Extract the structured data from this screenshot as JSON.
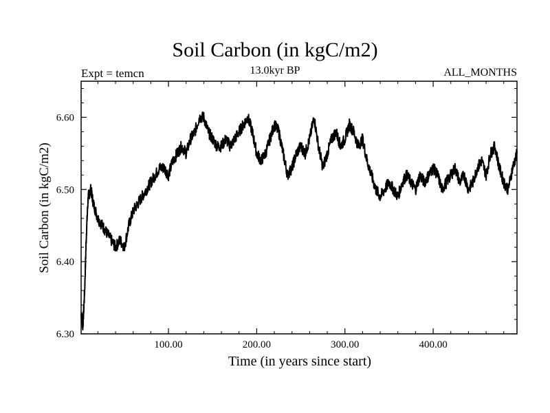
{
  "chart_data": {
    "type": "line",
    "title": "Soil Carbon (in kgC/m2)",
    "subtitle": "13.0kyr BP",
    "left_label": "Expt = temcn",
    "right_label": "ALL_MONTHS",
    "xlabel": "Time (in years since start)",
    "ylabel": "Soil Carbon (in kgC/m2)",
    "xlim": [
      1,
      495
    ],
    "ylim": [
      6.3,
      6.65
    ],
    "xticks": [
      100,
      200,
      300,
      400
    ],
    "xtick_labels": [
      "100.00",
      "200.00",
      "300.00",
      "400.00"
    ],
    "yticks": [
      6.3,
      6.4,
      6.5,
      6.6
    ],
    "ytick_labels": [
      "6.30",
      "6.40",
      "6.50",
      "6.60"
    ],
    "grid": false,
    "line_color": "#000000",
    "series": [
      {
        "name": "Soil Carbon",
        "x": [
          1,
          3,
          5,
          7,
          9,
          12,
          15,
          20,
          25,
          30,
          35,
          40,
          45,
          50,
          55,
          60,
          65,
          70,
          75,
          80,
          85,
          90,
          95,
          100,
          105,
          110,
          115,
          120,
          125,
          130,
          135,
          140,
          145,
          150,
          155,
          160,
          165,
          170,
          175,
          180,
          185,
          190,
          195,
          200,
          205,
          210,
          215,
          220,
          225,
          230,
          235,
          240,
          245,
          250,
          255,
          260,
          265,
          270,
          275,
          280,
          285,
          290,
          295,
          300,
          305,
          310,
          315,
          320,
          325,
          330,
          335,
          340,
          345,
          350,
          355,
          360,
          365,
          370,
          375,
          380,
          385,
          390,
          395,
          400,
          405,
          410,
          415,
          420,
          425,
          430,
          435,
          440,
          445,
          450,
          455,
          460,
          465,
          470,
          475,
          480,
          485,
          490,
          495
        ],
        "values": [
          6.33,
          6.31,
          6.36,
          6.44,
          6.49,
          6.5,
          6.48,
          6.46,
          6.45,
          6.44,
          6.43,
          6.42,
          6.43,
          6.42,
          6.45,
          6.47,
          6.48,
          6.49,
          6.5,
          6.51,
          6.52,
          6.53,
          6.53,
          6.52,
          6.54,
          6.55,
          6.56,
          6.55,
          6.57,
          6.58,
          6.6,
          6.6,
          6.58,
          6.57,
          6.56,
          6.56,
          6.57,
          6.56,
          6.57,
          6.58,
          6.59,
          6.6,
          6.58,
          6.55,
          6.54,
          6.55,
          6.57,
          6.59,
          6.58,
          6.55,
          6.52,
          6.53,
          6.55,
          6.56,
          6.55,
          6.57,
          6.6,
          6.56,
          6.53,
          6.55,
          6.57,
          6.58,
          6.56,
          6.57,
          6.59,
          6.58,
          6.56,
          6.57,
          6.54,
          6.52,
          6.5,
          6.49,
          6.5,
          6.51,
          6.5,
          6.49,
          6.51,
          6.52,
          6.51,
          6.5,
          6.52,
          6.51,
          6.52,
          6.53,
          6.52,
          6.5,
          6.51,
          6.52,
          6.53,
          6.51,
          6.52,
          6.5,
          6.51,
          6.53,
          6.54,
          6.52,
          6.55,
          6.56,
          6.53,
          6.51,
          6.5,
          6.53,
          6.55
        ]
      }
    ]
  }
}
